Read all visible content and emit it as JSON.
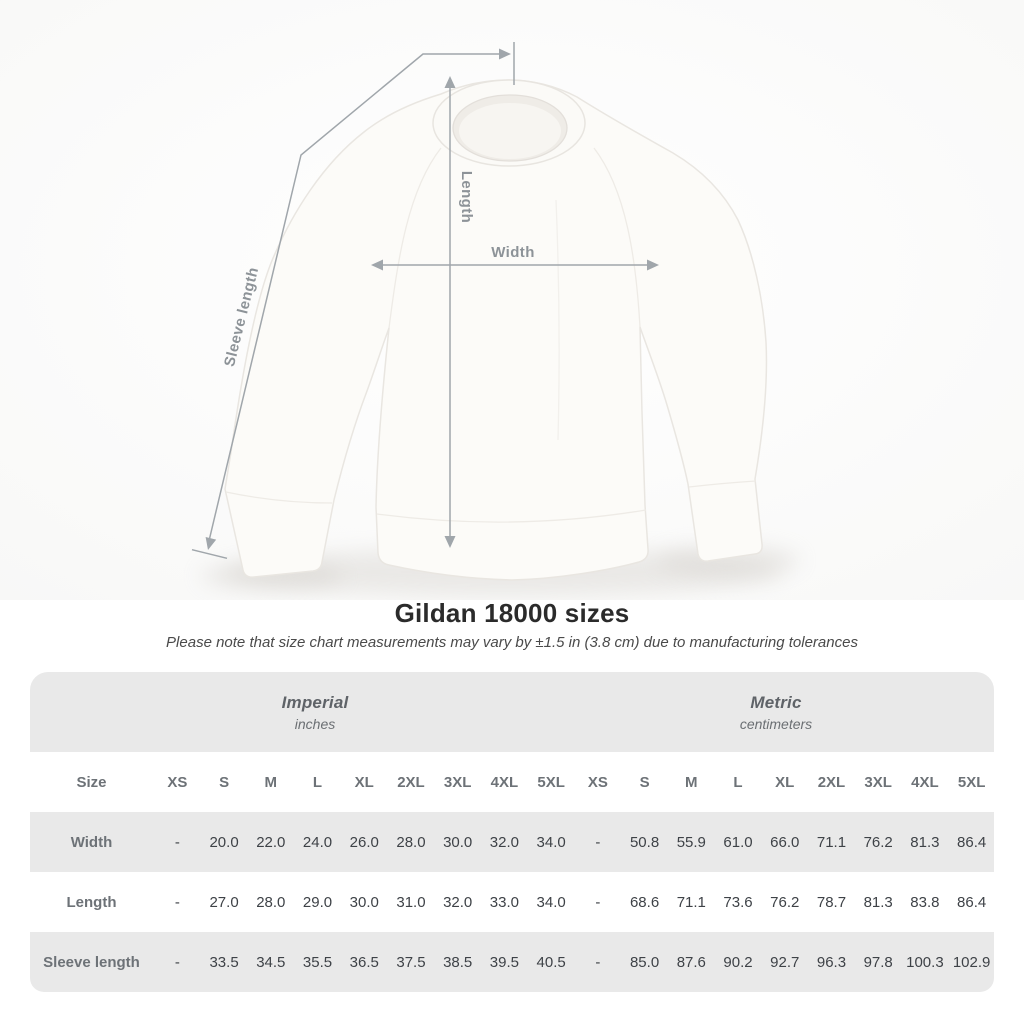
{
  "figure": {
    "labels": {
      "length": "Length",
      "width": "Width",
      "sleeve": "Sleeve length"
    }
  },
  "title": "Gildan 18000 sizes",
  "note": "Please note that size chart measurements may vary by ±1.5 in (3.8 cm) due to manufacturing tolerances",
  "table": {
    "imperial": {
      "label": "Imperial",
      "sublabel": "inches"
    },
    "metric": {
      "label": "Metric",
      "sublabel": "centimeters"
    },
    "size_label": "Size",
    "sizes": [
      "XS",
      "S",
      "M",
      "L",
      "XL",
      "2XL",
      "3XL",
      "4XL",
      "5XL"
    ],
    "rows": [
      {
        "label": "Width",
        "imperial": [
          "-",
          "20.0",
          "22.0",
          "24.0",
          "26.0",
          "28.0",
          "30.0",
          "32.0",
          "34.0"
        ],
        "metric": [
          "-",
          "50.8",
          "55.9",
          "61.0",
          "66.0",
          "71.1",
          "76.2",
          "81.3",
          "86.4"
        ]
      },
      {
        "label": "Length",
        "imperial": [
          "-",
          "27.0",
          "28.0",
          "29.0",
          "30.0",
          "31.0",
          "32.0",
          "33.0",
          "34.0"
        ],
        "metric": [
          "-",
          "68.6",
          "71.1",
          "73.6",
          "76.2",
          "78.7",
          "81.3",
          "83.8",
          "86.4"
        ]
      },
      {
        "label": "Sleeve length",
        "imperial": [
          "-",
          "33.5",
          "34.5",
          "35.5",
          "36.5",
          "37.5",
          "38.5",
          "39.5",
          "40.5"
        ],
        "metric": [
          "-",
          "85.0",
          "87.6",
          "90.2",
          "92.7",
          "96.3",
          "97.8",
          "100.3",
          "102.9"
        ]
      }
    ]
  },
  "chart_data": {
    "type": "table",
    "title": "Gildan 18000 sizes",
    "note": "Please note that size chart measurements may vary by ±1.5 in (3.8 cm) due to manufacturing tolerances",
    "unit_groups": [
      {
        "name": "Imperial",
        "unit": "inches"
      },
      {
        "name": "Metric",
        "unit": "centimeters"
      }
    ],
    "columns": [
      "Size",
      "XS",
      "S",
      "M",
      "L",
      "XL",
      "2XL",
      "3XL",
      "4XL",
      "5XL",
      "XS",
      "S",
      "M",
      "L",
      "XL",
      "2XL",
      "3XL",
      "4XL",
      "5XL"
    ],
    "rows": [
      [
        "Width",
        "-",
        "20.0",
        "22.0",
        "24.0",
        "26.0",
        "28.0",
        "30.0",
        "32.0",
        "34.0",
        "-",
        "50.8",
        "55.9",
        "61.0",
        "66.0",
        "71.1",
        "76.2",
        "81.3",
        "86.4"
      ],
      [
        "Length",
        "-",
        "27.0",
        "28.0",
        "29.0",
        "30.0",
        "31.0",
        "32.0",
        "33.0",
        "34.0",
        "-",
        "68.6",
        "71.1",
        "73.6",
        "76.2",
        "78.7",
        "81.3",
        "83.8",
        "86.4"
      ],
      [
        "Sleeve length",
        "-",
        "33.5",
        "34.5",
        "35.5",
        "36.5",
        "37.5",
        "38.5",
        "39.5",
        "40.5",
        "-",
        "85.0",
        "87.6",
        "90.2",
        "92.7",
        "96.3",
        "97.8",
        "100.3",
        "102.9"
      ]
    ],
    "diagram_measure_labels": [
      "Length",
      "Width",
      "Sleeve length"
    ]
  },
  "colors": {
    "row_gray": "#e9e9e9",
    "label_text": "#6d7277",
    "value_text": "#3e4247",
    "annotation": "#a0a6ab",
    "title_text": "#2b2b2b",
    "note_text": "#4a4a4a"
  }
}
